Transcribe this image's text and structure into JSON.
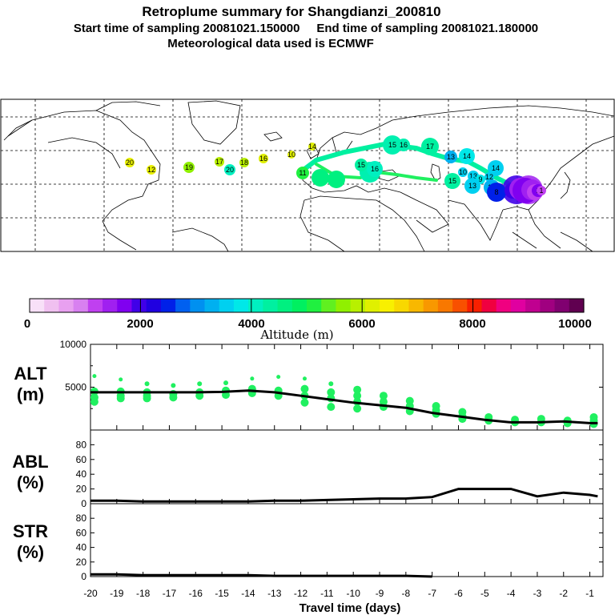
{
  "header": {
    "title": "Retroplume summary for Shangdianzi_200810",
    "line2": "Start time of sampling 20081021.150000     End time of sampling 20081021.180000",
    "line3": "Meteorological data used is ECMWF"
  },
  "colorbar": {
    "label": "Altitude (m)",
    "ticks": [
      "0",
      "2000",
      "4000",
      "6000",
      "8000",
      "10000"
    ],
    "colors": [
      "#f8e0f8",
      "#f0c0f0",
      "#e8a0f0",
      "#d880f0",
      "#c040f0",
      "#a020f0",
      "#8000f0",
      "#4000e8",
      "#2000e0",
      "#0020e8",
      "#0060f0",
      "#0090f0",
      "#00b0f0",
      "#00d0f0",
      "#00e8e8",
      "#00f0c0",
      "#00f0a0",
      "#00f080",
      "#00f060",
      "#20f040",
      "#60f020",
      "#90f000",
      "#b8f000",
      "#e0f000",
      "#f8f000",
      "#f8d800",
      "#f8b800",
      "#f89800",
      "#f87800",
      "#f85000",
      "#f82000",
      "#f00040",
      "#f00080",
      "#e000a0",
      "#c00090",
      "#a00080",
      "#800070",
      "#600050"
    ]
  },
  "map": {
    "labels": [
      "20",
      "12",
      "19",
      "17",
      "20",
      "18",
      "16",
      "10",
      "14",
      "11",
      "15",
      "16",
      "17",
      "13",
      "14",
      "15",
      "16",
      "14",
      "12",
      "13",
      "9",
      "13",
      "10",
      "8",
      "7",
      "6",
      "5",
      "4",
      "3",
      "2",
      "1",
      "15",
      "13"
    ],
    "track_color": "#00f0a0"
  },
  "panels": {
    "alt": {
      "label_line1": "ALT",
      "label_line2": "(m)"
    },
    "abl": {
      "label_line1": "ABL",
      "label_line2": "(%)"
    },
    "str": {
      "label_line1": "STR",
      "label_line2": "(%)"
    }
  },
  "chart_data": [
    {
      "type": "line",
      "name": "ALT",
      "title": "ALT (m)",
      "xlabel": "Travel time (days)",
      "ylabel": "(m)",
      "xlim": [
        -20,
        -0.5
      ],
      "ylim": [
        0,
        10000
      ],
      "yticks": [
        0,
        5000,
        10000
      ],
      "ytick_labels": [
        "",
        "5000",
        "10000"
      ],
      "x": [
        -20,
        -19,
        -18,
        -17,
        -16,
        -15,
        -14,
        -13,
        -12,
        -11,
        -10,
        -9,
        -8,
        -7,
        -6,
        -5,
        -4,
        -3,
        -2,
        -1,
        -0.7
      ],
      "median": [
        4400,
        4400,
        4400,
        4400,
        4400,
        4450,
        4600,
        4400,
        4000,
        3600,
        3200,
        2900,
        2600,
        2000,
        1600,
        1200,
        900,
        900,
        1000,
        800,
        800
      ],
      "scatter": {
        "x": [
          -19.85,
          -19.85,
          -19.85,
          -19.85,
          -18.85,
          -18.85,
          -18.85,
          -18.85,
          -17.85,
          -17.85,
          -17.85,
          -17.85,
          -16.85,
          -16.85,
          -16.85,
          -15.85,
          -15.85,
          -15.85,
          -14.85,
          -14.85,
          -14.85,
          -13.85,
          -13.85,
          -13.85,
          -12.85,
          -12.85,
          -12.85,
          -11.85,
          -11.85,
          -11.85,
          -11.85,
          -10.85,
          -10.85,
          -10.85,
          -10.85,
          -9.85,
          -9.85,
          -9.85,
          -9.85,
          -8.85,
          -8.85,
          -8.85,
          -7.85,
          -7.85,
          -7.85,
          -6.85,
          -6.85,
          -6.85,
          -5.85,
          -5.85,
          -5.85,
          -4.85,
          -4.85,
          -3.85,
          -3.85,
          -2.85,
          -2.85,
          -1.85,
          -1.85,
          -0.85,
          -0.85,
          -0.85
        ],
        "y": [
          6300,
          4500,
          3800,
          3300,
          5900,
          4500,
          4000,
          3700,
          5400,
          4400,
          4000,
          3700,
          5200,
          4200,
          3800,
          5400,
          4400,
          4000,
          5500,
          4600,
          4100,
          6000,
          4800,
          4300,
          6200,
          4600,
          4000,
          6000,
          4800,
          4000,
          3200,
          5400,
          4400,
          3700,
          2700,
          4700,
          4000,
          3300,
          2500,
          4000,
          3300,
          2700,
          3400,
          2800,
          2200,
          2800,
          2300,
          1900,
          2100,
          1600,
          1300,
          1500,
          1100,
          1200,
          900,
          1300,
          900,
          1100,
          800,
          1500,
          1100,
          700
        ],
        "color": "#20f060"
      }
    },
    {
      "type": "line",
      "name": "ABL",
      "title": "ABL (%)",
      "xlim": [
        -20,
        -0.5
      ],
      "ylim": [
        0,
        100
      ],
      "yticks": [
        0,
        20,
        40,
        60,
        80
      ],
      "ytick_labels": [
        "0",
        "20",
        "40",
        "60",
        "80"
      ],
      "x": [
        -20,
        -19,
        -18,
        -17,
        -16,
        -15,
        -14,
        -13,
        -12,
        -11,
        -10,
        -9,
        -8,
        -7,
        -6,
        -5,
        -4,
        -3,
        -2,
        -1,
        -0.7
      ],
      "values": [
        4,
        4,
        3,
        3,
        3,
        3,
        3,
        4,
        4,
        5,
        6,
        7,
        7,
        9,
        20,
        20,
        20,
        10,
        15,
        12,
        10
      ]
    },
    {
      "type": "line",
      "name": "STR",
      "title": "STR (%)",
      "xlim": [
        -20,
        -0.5
      ],
      "ylim": [
        0,
        100
      ],
      "yticks": [
        0,
        20,
        40,
        60,
        80
      ],
      "ytick_labels": [
        "0",
        "20",
        "40",
        "60",
        "80"
      ],
      "x": [
        -20,
        -19,
        -18,
        -17,
        -16,
        -15,
        -14,
        -13,
        -12,
        -11,
        -10,
        -9,
        -8,
        -7,
        -6,
        -5,
        -4,
        -3,
        -2,
        -1,
        -0.7
      ],
      "values": [
        3,
        3,
        2,
        2,
        2,
        2,
        2,
        1,
        1,
        1,
        1,
        1,
        1,
        0,
        0,
        0,
        0,
        0,
        0,
        0,
        0
      ]
    }
  ],
  "xaxis": {
    "ticks": [
      "-20",
      "-19",
      "-18",
      "-17",
      "-16",
      "-15",
      "-14",
      "-13",
      "-12",
      "-11",
      "-10",
      "-9",
      "-8",
      "-7",
      "-6",
      "-5",
      "-4",
      "-3",
      "-2",
      "-1"
    ],
    "label": "Travel time (days)"
  }
}
